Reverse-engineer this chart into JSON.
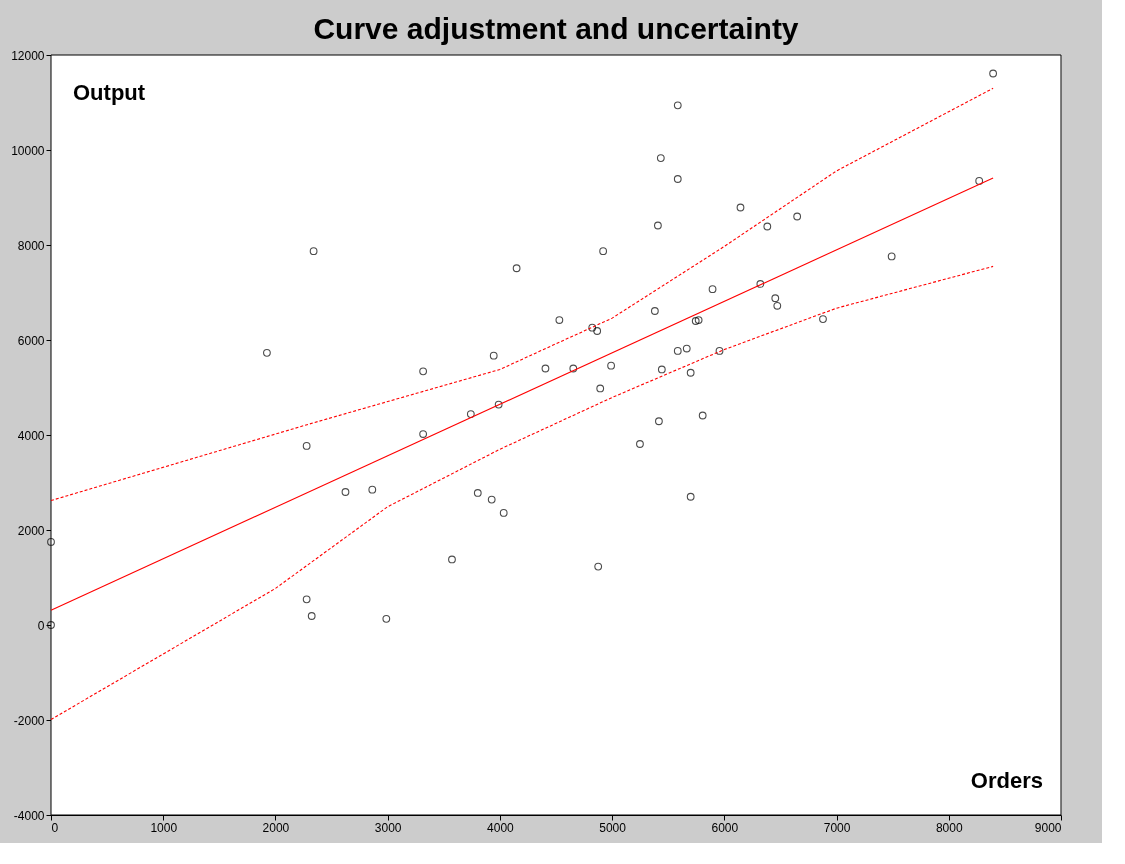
{
  "chart_data": {
    "type": "scatter",
    "title": "Curve adjustment and uncertainty",
    "xlabel": "Orders",
    "ylabel": "Output",
    "xlim": [
      0,
      9000
    ],
    "xticks": [
      0,
      1000,
      2000,
      3000,
      4000,
      5000,
      6000,
      7000,
      8000,
      9000
    ],
    "ylim": [
      -4000,
      12000
    ],
    "yticks": [
      -4000,
      -2000,
      0,
      2000,
      4000,
      6000,
      8000,
      10000,
      12000
    ],
    "series": [
      {
        "type": "scatter",
        "color": "#000000",
        "marker": "circle",
        "x": [
          0,
          0,
          1924,
          2278,
          2340,
          2278,
          2323,
          2624,
          2863,
          2988,
          3316,
          3316,
          3573,
          3741,
          3803,
          3927,
          3945,
          3989,
          4034,
          4149,
          4406,
          4530,
          4654,
          4823,
          4867,
          4876,
          4894,
          4920,
          4991,
          5248,
          5381,
          5408,
          5417,
          5434,
          5443,
          5585,
          5585,
          5585,
          5665,
          5700,
          5700,
          5745,
          5771,
          5807,
          5895,
          5957,
          6144,
          6321,
          6383,
          6454,
          6472,
          6649,
          6879,
          7491,
          8271,
          8395
        ],
        "values": [
          1750,
          0,
          5730,
          3770,
          7870,
          540,
          190,
          2800,
          2850,
          130,
          5340,
          4020,
          1380,
          4440,
          2780,
          2640,
          5670,
          4640,
          2360,
          7510,
          5400,
          6420,
          5400,
          6260,
          6190,
          1230,
          4980,
          7870,
          5460,
          3810,
          6610,
          8410,
          4290,
          9830,
          5380,
          10940,
          9390,
          5770,
          5820,
          5310,
          2700,
          6400,
          6420,
          4410,
          7070,
          5770,
          8790,
          7180,
          8390,
          6880,
          6720,
          8600,
          6440,
          7760,
          9350,
          11610
        ]
      },
      {
        "type": "line",
        "color": "#ff0000",
        "line_style": "solid",
        "x": [
          0,
          8395
        ],
        "values": [
          310,
          9410
        ]
      },
      {
        "type": "line",
        "color": "#ff0000",
        "line_style": "dashed",
        "x": [
          0,
          2300,
          4000,
          5000,
          6000,
          7000,
          8395
        ],
        "values": [
          2620,
          4230,
          5380,
          6460,
          7970,
          9560,
          11300
        ]
      },
      {
        "type": "line",
        "color": "#ff0000",
        "line_style": "dashed",
        "x": [
          0,
          2000,
          3000,
          4000,
          5000,
          6000,
          7000,
          8395
        ],
        "values": [
          -1990,
          770,
          2490,
          3700,
          4790,
          5800,
          6670,
          7550
        ]
      }
    ]
  }
}
